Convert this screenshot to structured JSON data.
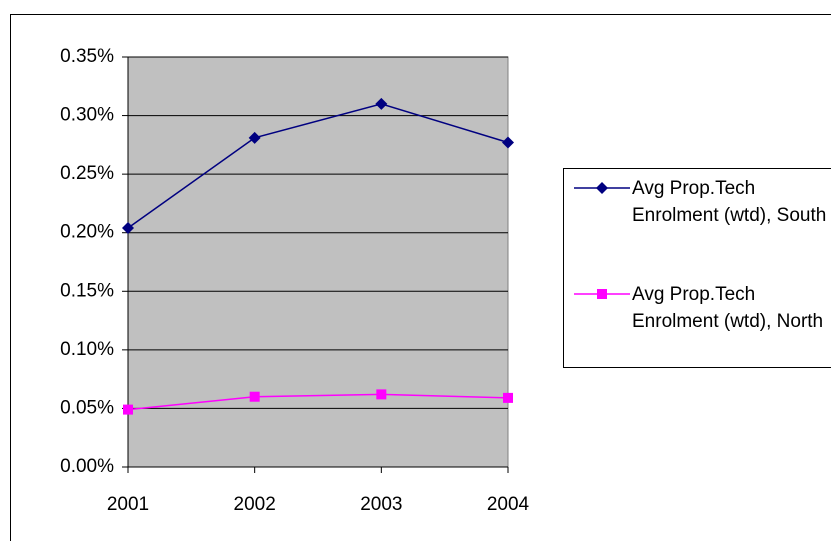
{
  "chart_data": {
    "type": "line",
    "categories": [
      "2001",
      "2002",
      "2003",
      "2004"
    ],
    "series": [
      {
        "name": "Avg Prop.Tech Enrolment (wtd), South",
        "color": "#000080",
        "marker": "diamond",
        "values": [
          0.204,
          0.281,
          0.31,
          0.277
        ]
      },
      {
        "name": "Avg Prop.Tech Enrolment (wtd), North",
        "color": "#ff00ff",
        "marker": "square",
        "values": [
          0.049,
          0.06,
          0.062,
          0.059
        ]
      }
    ],
    "ylim": [
      0,
      0.35
    ],
    "yticks": [
      {
        "value": 0,
        "label": "0.00%"
      },
      {
        "value": 0.05,
        "label": "0.05%"
      },
      {
        "value": 0.1,
        "label": "0.10%"
      },
      {
        "value": 0.15,
        "label": "0.15%"
      },
      {
        "value": 0.2,
        "label": "0.20%"
      },
      {
        "value": 0.25,
        "label": "0.25%"
      },
      {
        "value": 0.3,
        "label": "0.30%"
      },
      {
        "value": 0.35,
        "label": "0.35%"
      }
    ],
    "grid": true,
    "plot_background": "#c0c0c0",
    "legend": "right"
  }
}
